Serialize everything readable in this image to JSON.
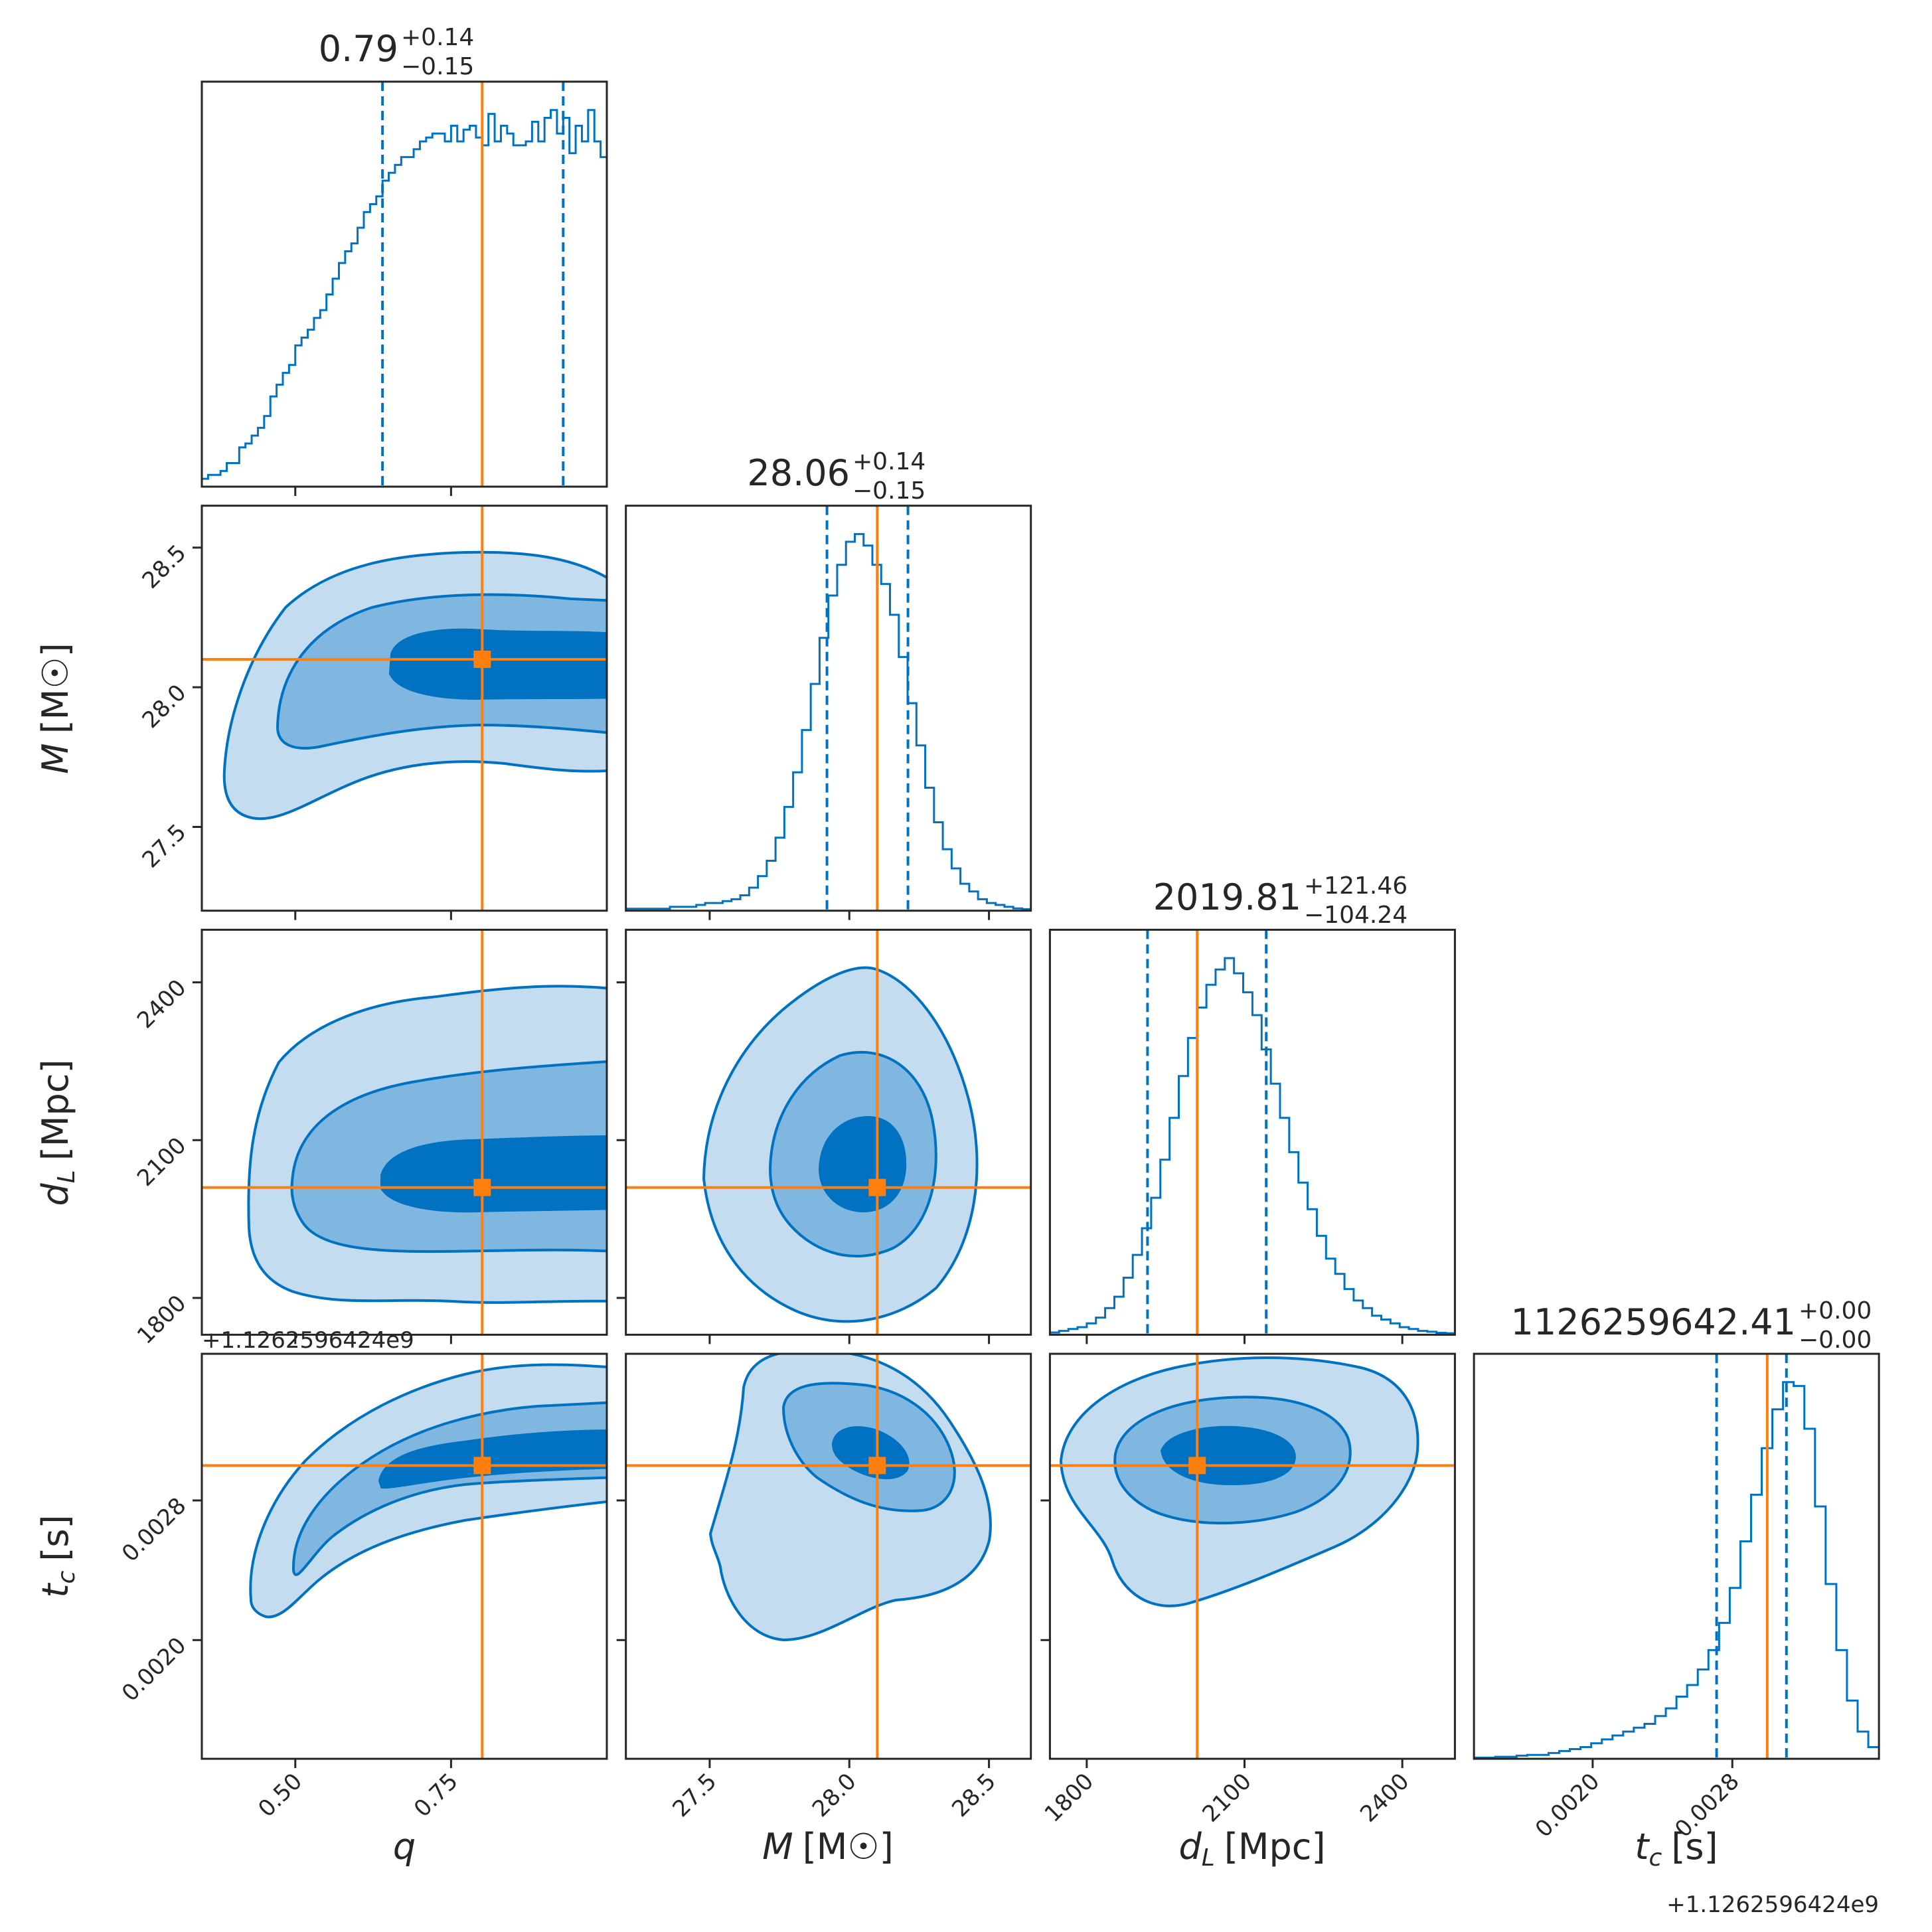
{
  "chart_data": {
    "type": "corner",
    "colors": {
      "posterior": "#0072c1",
      "truth": "#ff7f0e",
      "axes": "#262626",
      "fill_levels": [
        "#c3dcef",
        "#80b7e0",
        "#0072c1"
      ]
    },
    "parameters": [
      {
        "key": "q",
        "axis_label": "q",
        "label_italic": "q",
        "label_units": "",
        "range": [
          0.35,
          1.0
        ],
        "ticks": [
          0.5,
          0.75
        ],
        "tick_labels": [
          "0.50",
          "0.75"
        ],
        "truth": 0.8,
        "median": 0.79,
        "quantiles": [
          0.64,
          0.93
        ],
        "title": {
          "value": "0.79",
          "plus": "+0.14",
          "minus": "−0.15"
        },
        "histogram": [
          2,
          3,
          3,
          4,
          6,
          6,
          10,
          11,
          13,
          15,
          18,
          23,
          26,
          29,
          31,
          36,
          38,
          40,
          43,
          45,
          49,
          53,
          57,
          60,
          62,
          66,
          70,
          72,
          74,
          78,
          80,
          82,
          84,
          84,
          86,
          88,
          89,
          90,
          90,
          88,
          92,
          88,
          91,
          92,
          89,
          87,
          95,
          88,
          92,
          90,
          87,
          87,
          88,
          93,
          88,
          94,
          96,
          90,
          94,
          85,
          92,
          88,
          96,
          88,
          84
        ]
      },
      {
        "key": "M",
        "axis_label": "M [M☉]",
        "label_italic": "M",
        "label_units": "[M☉]",
        "range": [
          27.2,
          28.65
        ],
        "ticks": [
          27.5,
          28.0,
          28.5
        ],
        "tick_labels": [
          "27.5",
          "28.0",
          "28.5"
        ],
        "truth": 28.1,
        "median": 28.06,
        "quantiles": [
          27.92,
          28.21
        ],
        "title": {
          "value": "28.06",
          "plus": "+0.14",
          "minus": "−0.15"
        },
        "histogram": [
          0.5,
          0.5,
          0.5,
          0.5,
          0.5,
          1,
          1,
          1,
          1.5,
          2,
          2,
          2.5,
          3,
          4,
          6,
          9,
          13,
          19,
          27,
          36,
          47,
          59,
          71,
          82,
          90,
          96,
          98,
          95,
          90,
          85,
          77,
          66,
          54,
          43,
          32,
          23,
          16,
          11,
          7,
          5,
          3,
          2,
          1.5,
          1,
          0.6,
          0.4
        ]
      },
      {
        "key": "dL",
        "axis_label": "d_L [Mpc]",
        "label_italic": "d",
        "label_sub": "L",
        "label_units": "[Mpc]",
        "range": [
          1730,
          2500
        ],
        "ticks": [
          1800,
          2100,
          2400
        ],
        "tick_labels": [
          "1800",
          "2100",
          "2400"
        ],
        "truth": 2010,
        "median": 2019.81,
        "quantiles": [
          1915.57,
          2141.27
        ],
        "title": {
          "value": "2019.81",
          "plus": "+121.46",
          "minus": "−104.24"
        },
        "histogram": [
          0.6,
          1,
          1.5,
          2,
          3,
          4.5,
          7,
          10,
          15,
          21,
          28,
          36,
          46,
          57,
          68,
          78,
          86,
          92,
          96,
          99,
          95,
          90,
          84,
          75,
          66,
          57,
          48,
          40,
          33,
          26,
          20,
          16,
          12,
          9,
          7,
          5,
          4,
          3,
          2,
          1.5,
          1,
          0.8,
          0.5,
          0.4
        ]
      },
      {
        "key": "tc",
        "axis_label": "t_c [s]",
        "label_italic": "t",
        "label_sub": "c",
        "label_units": "[s]",
        "range": [
          0.00132,
          0.00364
        ],
        "ticks": [
          0.002,
          0.0028
        ],
        "tick_labels": [
          "0.0020",
          "0.0028"
        ],
        "offset_text": "+1.1262596424e9",
        "truth": 0.003,
        "median": 0.003,
        "quantiles": [
          0.00271,
          0.00311
        ],
        "title": {
          "value": "1126259642.41",
          "plus": "+0.00",
          "minus": "−0.00"
        },
        "histogram": [
          0.3,
          0.3,
          0.5,
          0.5,
          0.8,
          1,
          1,
          1.5,
          2,
          2.5,
          3,
          4,
          5,
          6,
          7,
          8,
          9,
          11,
          13,
          16,
          19,
          23,
          28,
          35,
          44,
          56,
          68,
          80,
          90,
          97,
          96,
          85,
          65,
          45,
          28,
          15,
          7,
          3
        ]
      }
    ],
    "off_diagonal": [
      {
        "x": "q",
        "y": "M"
      },
      {
        "x": "q",
        "y": "dL"
      },
      {
        "x": "M",
        "y": "dL"
      },
      {
        "x": "q",
        "y": "tc"
      },
      {
        "x": "M",
        "y": "tc"
      },
      {
        "x": "dL",
        "y": "tc"
      }
    ]
  }
}
